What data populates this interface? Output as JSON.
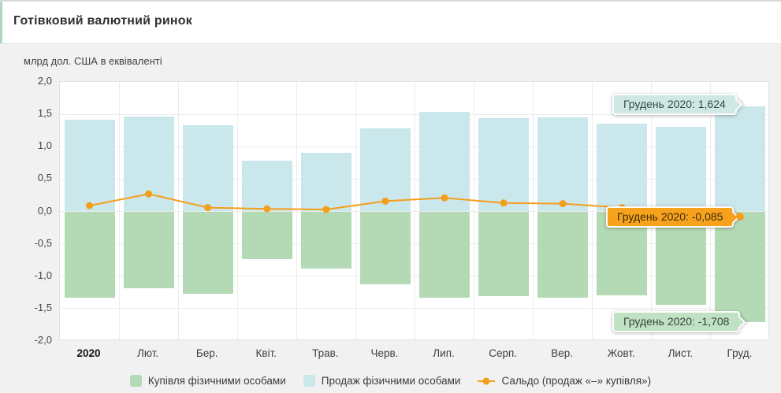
{
  "header": {
    "title": "Готівковий валютний ринок"
  },
  "chart": {
    "units_label": "млрд дол. США в еквіваленті",
    "colors": {
      "buy": "#b4d9b5",
      "sale": "#cae7ec",
      "saldo": "#f59e1b",
      "header_accent": "#aed8be",
      "grid": "#ececec",
      "page_bg": "#f2f1f1"
    }
  },
  "chart_data": {
    "type": "bar",
    "title": "Готівковий валютний ринок",
    "ylabel": "млрд дол. США в еквіваленті",
    "xlabel": "",
    "categories": [
      "2020",
      "Лют.",
      "Бер.",
      "Квіт.",
      "Трав.",
      "Черв.",
      "Лип.",
      "Серп.",
      "Вер.",
      "Жовт.",
      "Лист.",
      "Груд."
    ],
    "series": [
      {
        "name": "Купівля фізичними особами",
        "role": "buy",
        "type": "bar",
        "color": "#b4d9b5",
        "values": [
          -1.33,
          -1.19,
          -1.27,
          -0.74,
          -0.88,
          -1.12,
          -1.33,
          -1.31,
          -1.33,
          -1.29,
          -1.44,
          -1.708
        ]
      },
      {
        "name": "Продаж фізичними особами",
        "role": "sale",
        "type": "bar",
        "color": "#cae7ec",
        "values": [
          1.42,
          1.46,
          1.33,
          0.78,
          0.91,
          1.28,
          1.54,
          1.44,
          1.45,
          1.35,
          1.31,
          1.624
        ]
      },
      {
        "name": "Сальдо (продаж «–» купівля»)",
        "role": "saldo",
        "type": "line",
        "color": "#f59e1b",
        "values": [
          0.09,
          0.27,
          0.06,
          0.04,
          0.03,
          0.16,
          0.21,
          0.13,
          0.12,
          0.06,
          -0.13,
          -0.085
        ]
      }
    ],
    "ylim": [
      -2.0,
      2.0
    ],
    "yticks": [
      2.0,
      1.5,
      1.0,
      0.5,
      0.0,
      -0.5,
      -1.0,
      -1.5,
      -2.0
    ],
    "ytick_labels": [
      "2,0",
      "1,5",
      "1,0",
      "0,5",
      "0,0",
      "-0,5",
      "-1,0",
      "-1,5",
      "-2,0"
    ],
    "grid": true,
    "legend_position": "bottom"
  },
  "tooltips": [
    {
      "text": "Грудень 2020: 1,624",
      "variant": "sale",
      "bg": "#cfe8e3"
    },
    {
      "text": "Грудень 2020: -0,085",
      "variant": "saldo",
      "bg": "#f6a21d"
    },
    {
      "text": "Грудень 2020: -1,708",
      "variant": "buy",
      "bg": "#c1e1c4"
    }
  ],
  "legend": {
    "items": [
      {
        "label": "Купівля фізичними особами",
        "variant": "buy"
      },
      {
        "label": "Продаж фізичними особами",
        "variant": "sale"
      },
      {
        "label": "Сальдо (продаж «–» купівля»)",
        "variant": "saldo"
      }
    ]
  }
}
